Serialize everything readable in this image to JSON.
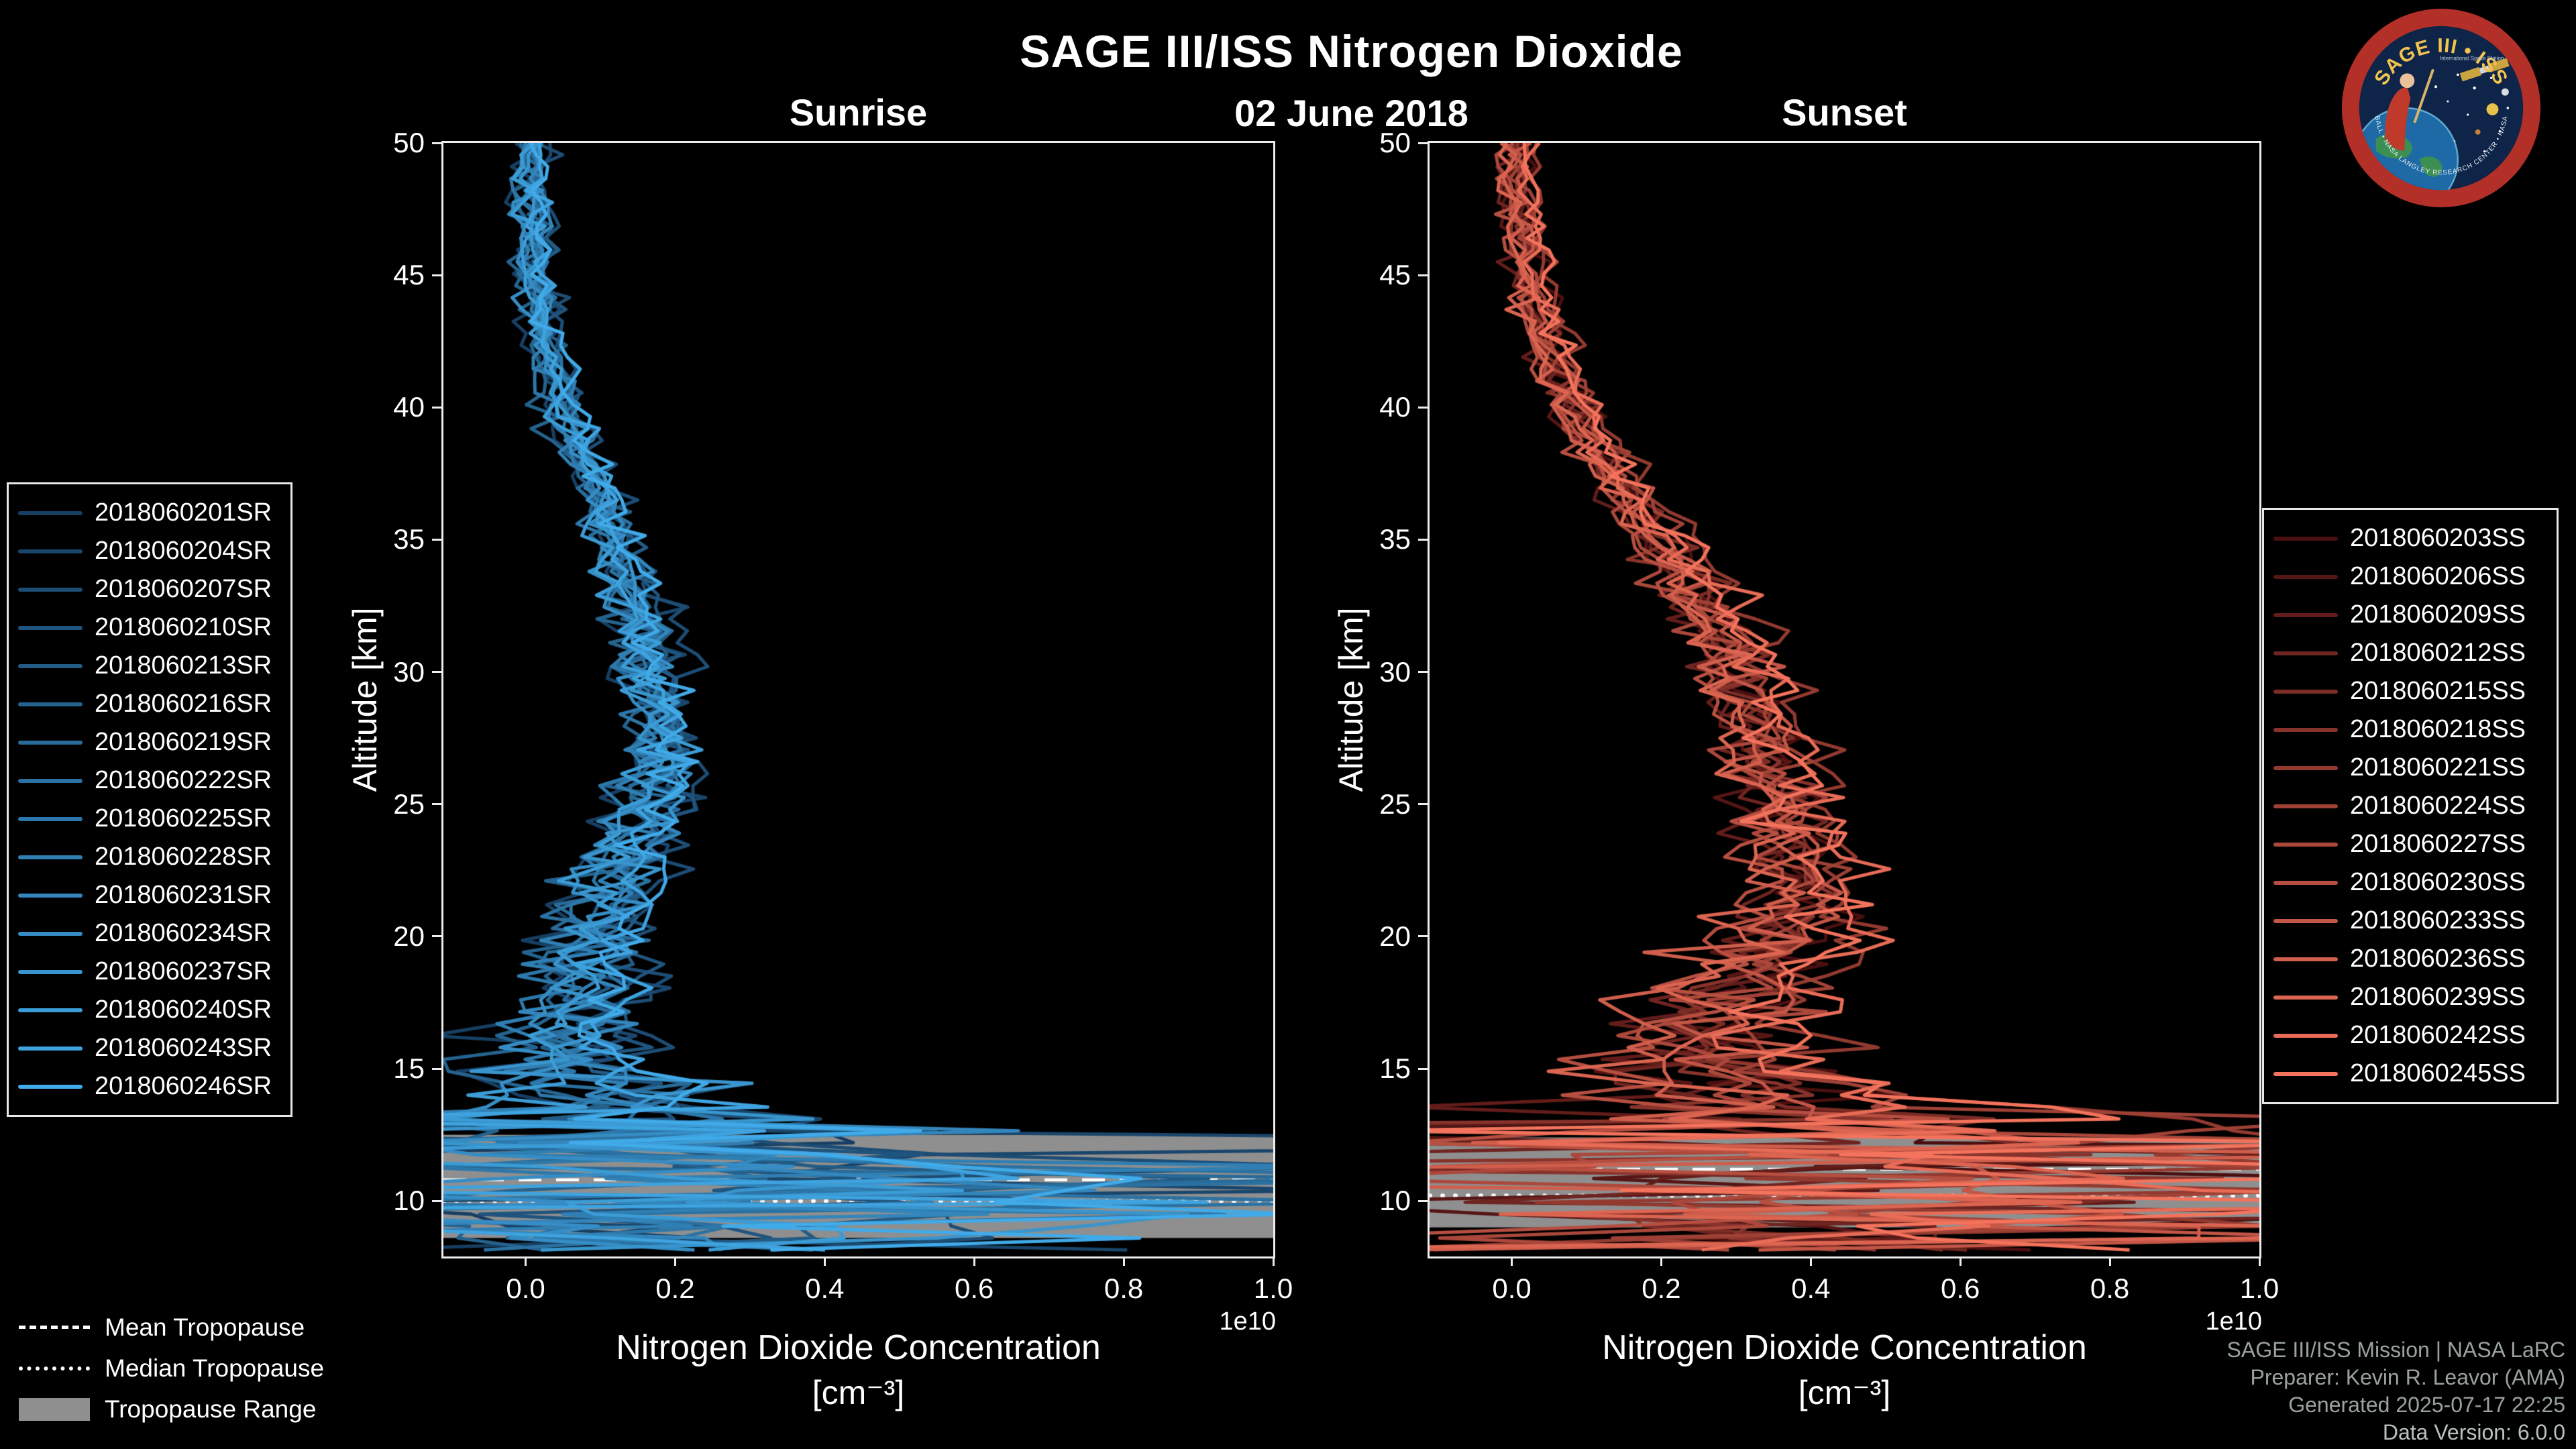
{
  "header": {
    "title": "SAGE III/ISS Nitrogen Dioxide",
    "date": "02 June 2018"
  },
  "axes": {
    "ylabel": "Altitude [km]",
    "xlabel_line1": "Nitrogen Dioxide Concentration",
    "xlabel_line2": "[cm⁻³]",
    "offset_text": "1e10"
  },
  "tropopause_legend": {
    "mean_label": "Mean Tropopause",
    "median_label": "Median Tropopause",
    "range_label": "Tropopause Range"
  },
  "footer": {
    "line1": "SAGE III/ISS Mission | NASA LaRC",
    "line2": "Preparer: Kevin R. Leavor (AMA)",
    "line3": "Generated 2025-07-17 22:25",
    "line4": "Data Version: 6.0.0"
  },
  "logo": {
    "arc_text": "SAGE III • ISS",
    "sub_text_right": "International Space Station",
    "bottom_arc_text": "BALL • NASA LANGLEY RESEARCH CENTER • NASA"
  },
  "chart_data": [
    {
      "type": "line",
      "panel": "left",
      "title": "Sunrise",
      "xlabel": "Nitrogen Dioxide Concentration [cm⁻³]",
      "ylabel": "Altitude [km]",
      "x_scale": "1e10",
      "xlim": [
        -0.11,
        1.0
      ],
      "ylim": [
        7.9,
        50
      ],
      "xticks": [
        "0.0",
        "0.2",
        "0.4",
        "0.6",
        "0.8",
        "1.0"
      ],
      "xtick_values": [
        0.0,
        0.2,
        0.4,
        0.6,
        0.8,
        1.0
      ],
      "yticks": [
        10,
        15,
        20,
        25,
        30,
        35,
        40,
        45,
        50
      ],
      "grid": false,
      "legend_position": "outside-left",
      "color_start": "#173f63",
      "color_end": "#41aae8",
      "band_color": "#8f8f8f",
      "series_labels": [
        "2018060201SR",
        "2018060204SR",
        "2018060207SR",
        "2018060210SR",
        "2018060213SR",
        "2018060216SR",
        "2018060219SR",
        "2018060222SR",
        "2018060225SR",
        "2018060228SR",
        "2018060231SR",
        "2018060234SR",
        "2018060237SR",
        "2018060240SR",
        "2018060243SR",
        "2018060246SR"
      ],
      "mean_profile": {
        "altitude_km": [
          50,
          48,
          46,
          44,
          42,
          40,
          38,
          36,
          34,
          32,
          30,
          28,
          26,
          24,
          22,
          20,
          18,
          16,
          15,
          14,
          13,
          12,
          11,
          10,
          9,
          8
        ],
        "value_1e10": [
          0.01,
          0.01,
          0.01,
          0.02,
          0.03,
          0.05,
          0.08,
          0.11,
          0.13,
          0.155,
          0.17,
          0.185,
          0.18,
          0.155,
          0.125,
          0.1,
          0.085,
          0.07,
          0.075,
          0.09,
          0.12,
          0.17,
          0.27,
          0.38,
          0.28,
          0.12
        ]
      },
      "spread_profile": {
        "altitude_km": [
          50,
          45,
          40,
          35,
          30,
          25,
          20,
          17,
          15,
          14,
          13,
          12,
          11,
          10,
          9,
          8
        ],
        "sigma_1e10": [
          0.013,
          0.013,
          0.014,
          0.018,
          0.024,
          0.03,
          0.035,
          0.045,
          0.07,
          0.11,
          0.17,
          0.24,
          0.28,
          0.3,
          0.26,
          0.18
        ]
      },
      "tropopause": {
        "mean_km": 10.8,
        "median_km": 10.0,
        "range_km": [
          8.6,
          12.5
        ]
      }
    },
    {
      "type": "line",
      "panel": "right",
      "title": "Sunset",
      "xlabel": "Nitrogen Dioxide Concentration [cm⁻³]",
      "ylabel": "Altitude [km]",
      "x_scale": "1e10",
      "xlim": [
        -0.11,
        1.0
      ],
      "ylim": [
        7.9,
        50
      ],
      "xticks": [
        "0.0",
        "0.2",
        "0.4",
        "0.6",
        "0.8",
        "1.0"
      ],
      "xtick_values": [
        0.0,
        0.2,
        0.4,
        0.6,
        0.8,
        1.0
      ],
      "yticks": [
        10,
        15,
        20,
        25,
        30,
        35,
        40,
        45,
        50
      ],
      "grid": false,
      "legend_position": "outside-right",
      "color_start": "#4a0f0f",
      "color_end": "#f4735c",
      "band_color": "#8f8f8f",
      "series_labels": [
        "2018060203SS",
        "2018060206SS",
        "2018060209SS",
        "2018060212SS",
        "2018060215SS",
        "2018060218SS",
        "2018060221SS",
        "2018060224SS",
        "2018060227SS",
        "2018060230SS",
        "2018060233SS",
        "2018060236SS",
        "2018060239SS",
        "2018060242SS",
        "2018060245SS"
      ],
      "mean_profile": {
        "altitude_km": [
          50,
          48,
          46,
          44,
          42,
          40,
          38,
          36,
          34,
          32,
          30,
          28,
          26,
          24,
          22,
          20,
          18,
          16,
          15,
          14,
          13,
          12,
          11,
          10,
          9,
          8
        ],
        "value_1e10": [
          0.005,
          0.01,
          0.015,
          0.03,
          0.05,
          0.08,
          0.12,
          0.17,
          0.22,
          0.27,
          0.3,
          0.33,
          0.35,
          0.37,
          0.385,
          0.37,
          0.3,
          0.25,
          0.27,
          0.3,
          0.36,
          0.44,
          0.52,
          0.55,
          0.42,
          0.25
        ]
      },
      "spread_profile": {
        "altitude_km": [
          50,
          45,
          40,
          35,
          30,
          25,
          20,
          17,
          15,
          14,
          13,
          12,
          11,
          10,
          9,
          8
        ],
        "sigma_1e10": [
          0.013,
          0.013,
          0.016,
          0.02,
          0.026,
          0.032,
          0.042,
          0.06,
          0.09,
          0.13,
          0.19,
          0.26,
          0.31,
          0.32,
          0.28,
          0.2
        ]
      },
      "tropopause": {
        "mean_km": 11.2,
        "median_km": 10.2,
        "range_km": [
          9.0,
          12.4
        ]
      }
    }
  ]
}
